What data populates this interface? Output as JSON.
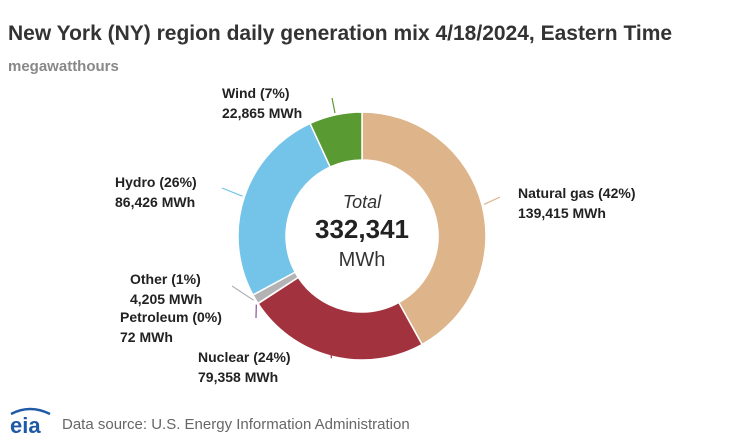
{
  "title": "New York (NY) region daily generation mix 4/18/2024, Eastern Time",
  "subtitle": "megawatthours",
  "chart_data": {
    "type": "pie",
    "title": "New York (NY) region daily generation mix 4/18/2024, Eastern Time",
    "subtitle": "megawatthours",
    "donut": true,
    "center": {
      "top": "Total",
      "value": "332,341",
      "unit": "MWh"
    },
    "total": 332341,
    "slices": [
      {
        "name": "Natural gas",
        "value": 139415,
        "pct_label": "Natural gas (42%)",
        "value_label": "139,415 MWh",
        "color": "#deb48a"
      },
      {
        "name": "Nuclear",
        "value": 79358,
        "pct_label": "Nuclear (24%)",
        "value_label": "79,358 MWh",
        "color": "#a3323f"
      },
      {
        "name": "Petroleum",
        "value": 72,
        "pct_label": "Petroleum (0%)",
        "value_label": "72 MWh",
        "color": "#8b4f9f"
      },
      {
        "name": "Other",
        "value": 4205,
        "pct_label": "Other (1%)",
        "value_label": "4,205 MWh",
        "color": "#b3b3b3"
      },
      {
        "name": "Hydro",
        "value": 86426,
        "pct_label": "Hydro (26%)",
        "value_label": "86,426 MWh",
        "color": "#74c3e8"
      },
      {
        "name": "Wind",
        "value": 22865,
        "pct_label": "Wind (7%)",
        "value_label": "22,865 MWh",
        "color": "#5a9a32"
      }
    ]
  },
  "footer": {
    "logo": "eia",
    "source": "Data source: U.S. Energy Information Administration"
  }
}
